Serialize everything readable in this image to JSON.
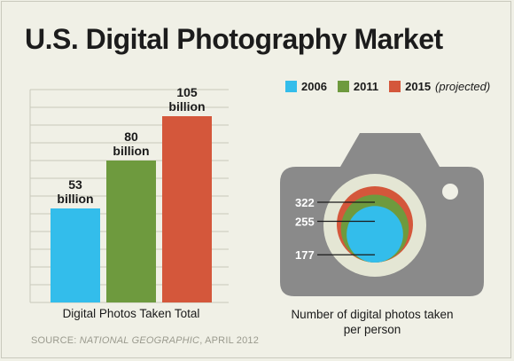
{
  "title": "U.S. Digital Photography Market",
  "legend": [
    {
      "label": "2006",
      "note": "",
      "color": "#33bdeb"
    },
    {
      "label": "2011",
      "note": "",
      "color": "#6e9a3e"
    },
    {
      "label": "2015",
      "note": "(projected)",
      "color": "#d4573b"
    }
  ],
  "bar_caption": "Digital Photos Taken Total",
  "camera_caption_line1": "Number of digital photos taken",
  "camera_caption_line2": "per person",
  "source": {
    "prefix": "SOURCE: ",
    "publication": "NATIONAL GEOGRAPHIC",
    "suffix": ", APRIL 2012"
  },
  "chart_data": [
    {
      "type": "bar",
      "categories": [
        "2006",
        "2011",
        "2015"
      ],
      "values": [
        53,
        80,
        105
      ],
      "value_labels": [
        [
          "53",
          "billion"
        ],
        [
          "80",
          "billion"
        ],
        [
          "105",
          "billion"
        ]
      ],
      "colors": [
        "#33bdeb",
        "#6e9a3e",
        "#d4573b"
      ],
      "xlabel": "Digital Photos Taken Total",
      "ylim": [
        0,
        120
      ],
      "grid": true
    },
    {
      "type": "bubble",
      "categories": [
        "2006",
        "2011",
        "2015"
      ],
      "values": [
        177,
        255,
        322
      ],
      "colors": [
        "#33bdeb",
        "#6e9a3e",
        "#d4573b"
      ],
      "xlabel": "Number of digital photos taken per person"
    }
  ]
}
